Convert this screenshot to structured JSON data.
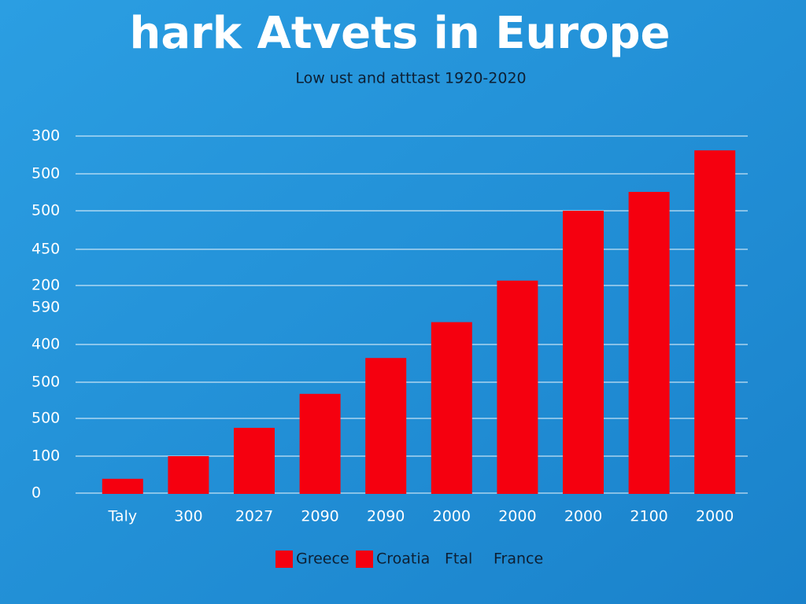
{
  "chart_data": {
    "type": "bar",
    "title": "hark Atvets in Europe",
    "subtitle": "Low ust and atttast 1920-2020",
    "y_axis_labels": [
      "300",
      "500",
      "500",
      "450",
      "200",
      "590",
      "400",
      "500",
      "500",
      "100",
      "0"
    ],
    "categories": [
      "Taly",
      "300",
      "2027",
      "2090",
      "2090",
      "2000",
      "2000",
      "2000",
      "2100",
      "2000"
    ],
    "values": [
      40,
      100,
      175,
      265,
      360,
      455,
      565,
      750,
      800,
      910
    ],
    "color": "#f5000f",
    "ylim": [
      0,
      950
    ],
    "legend": [
      {
        "name": "Greece",
        "color": "#f5000f"
      },
      {
        "name": "Croatia",
        "color": "#f5000f"
      },
      {
        "name": "Ftal"
      },
      {
        "name": "France"
      }
    ]
  }
}
